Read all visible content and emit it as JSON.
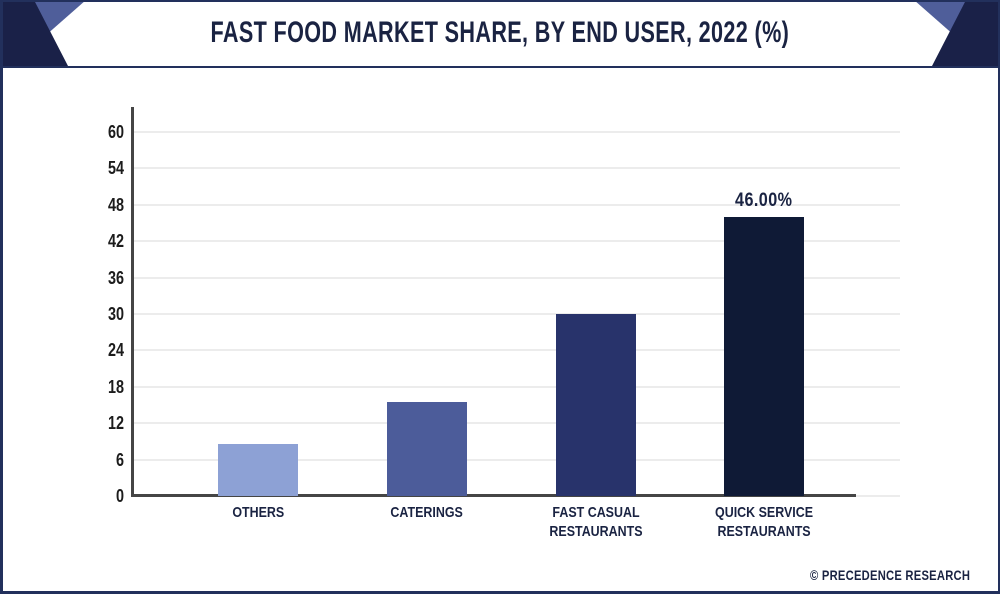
{
  "header": {
    "title": "FAST FOOD MARKET SHARE, BY END USER, 2022 (%)"
  },
  "footer": {
    "credit": "© PRECEDENCE RESEARCH"
  },
  "colors": {
    "navy_text": "#1a2342",
    "deco_navy": "#1a2148",
    "deco_slate": "#4f5e9a",
    "frame_border": "#22305c",
    "axis_line": "#454545",
    "gridline": "#ececec",
    "tick_text": "#1c1c1c"
  },
  "chart_data": {
    "type": "bar",
    "title": "FAST FOOD MARKET SHARE, BY END USER, 2022 (%)",
    "categories": [
      "OTHERS",
      "CATERINGS",
      "FAST CASUAL RESTAURANTS",
      "QUICK SERVICE\nRESTAURANTS"
    ],
    "values": [
      8.5,
      15.5,
      30,
      46
    ],
    "value_labels": [
      "",
      "",
      "",
      "46.00%"
    ],
    "bar_colors": [
      "#8da1d5",
      "#4c5c9a",
      "#28336b",
      "#0f1a36"
    ],
    "yticks": [
      0,
      6,
      12,
      18,
      24,
      30,
      36,
      42,
      48,
      54,
      60
    ],
    "ylim": [
      0,
      60
    ],
    "grid": "horizontal-light",
    "legend": "none",
    "xlabel": "",
    "ylabel": ""
  }
}
